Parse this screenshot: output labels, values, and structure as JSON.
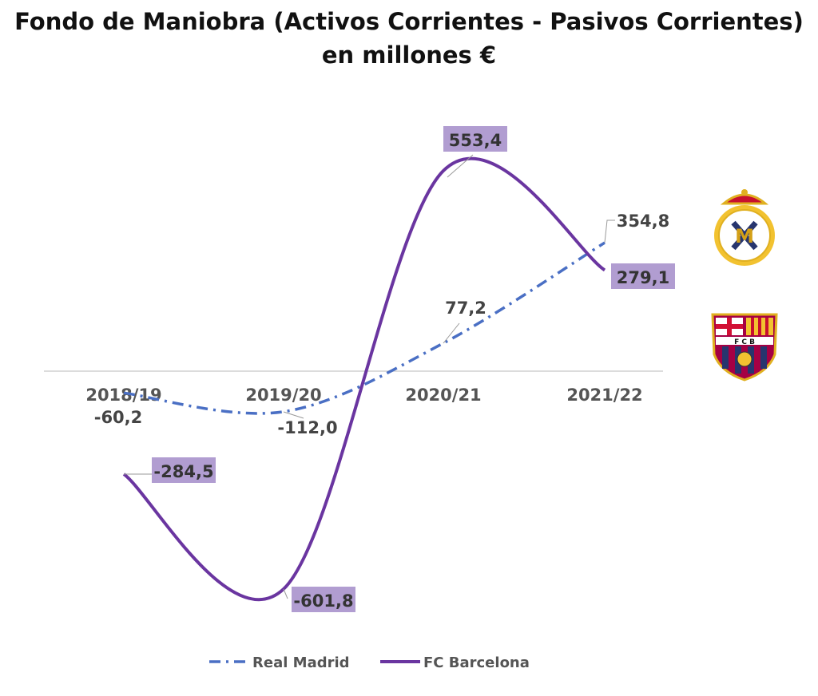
{
  "chart_data": {
    "type": "line",
    "title": "Fondo de Maniobra (Activos Corrientes - Pasivos Corrientes)",
    "subtitle": "en millones €",
    "categories": [
      "2018/19",
      "2019/20",
      "2020/21",
      "2021/22"
    ],
    "series": [
      {
        "name": "Real Madrid",
        "values": [
          -60.2,
          -112.0,
          77.2,
          354.8
        ],
        "labels": [
          "-60,2",
          "-112,0",
          "77,2",
          "354,8"
        ],
        "color": "#4a6fc4",
        "style": "dash-dot"
      },
      {
        "name": "FC Barcelona",
        "values": [
          -284.5,
          -601.8,
          553.4,
          279.1
        ],
        "labels": [
          "-284,5",
          "-601,8",
          "553,4",
          "279,1"
        ],
        "color": "#6a35a0",
        "label_bg": "#b19dd1",
        "style": "solid"
      }
    ],
    "ylim": [
      -650,
      650
    ],
    "grid": false,
    "legend": "bottom",
    "logos": [
      "Real Madrid crest",
      "FC Barcelona crest"
    ]
  }
}
